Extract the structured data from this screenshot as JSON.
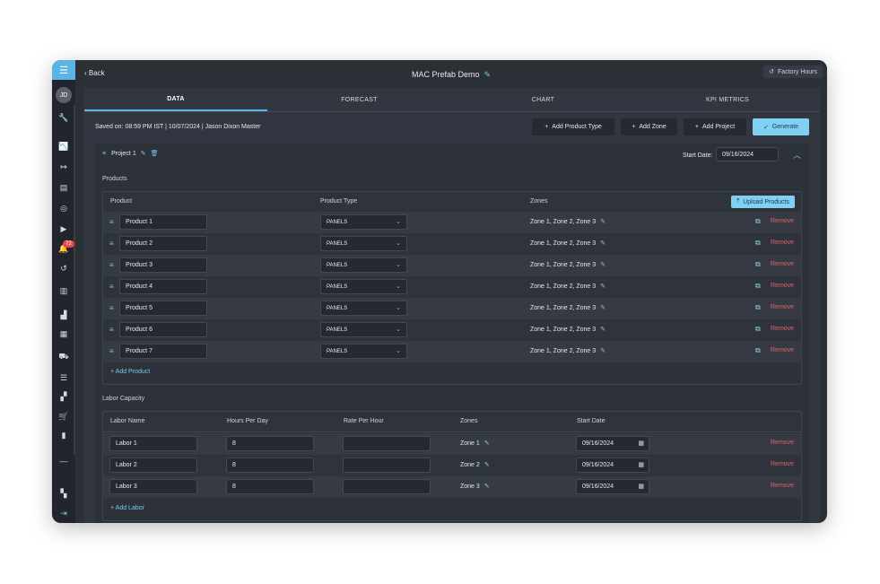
{
  "sidebar": {
    "avatar": "JD",
    "notification_count": "72",
    "icons": [
      "tools-icon",
      "chart-line-icon",
      "arrow-right-icon",
      "document-icon",
      "target-icon",
      "play-icon",
      "bell-icon",
      "history-icon",
      "file-icon",
      "bar-chart-icon",
      "calendar-icon",
      "truck-icon",
      "list-icon",
      "boxes-icon",
      "cart-icon",
      "stats-icon",
      "minus-icon",
      "grid-icon",
      "logout-icon"
    ]
  },
  "topbar": {
    "back": "Back",
    "title": "MAC Prefab Demo",
    "factory_hours": "Factory Hours"
  },
  "tabs": [
    "DATA",
    "FORECAST",
    "CHART",
    "KPI METRICS"
  ],
  "saved_text": "Saved on: 08:59 PM IST | 10/07/2024 | Jason Dixon Master",
  "actions": {
    "add_product_type": "Add Product Type",
    "add_zone": "Add Zone",
    "add_project": "Add Project",
    "generate": "Generate"
  },
  "project": {
    "name": "Project 1",
    "start_date_label": "Start Date:",
    "start_date": "09/16/2024"
  },
  "products": {
    "section_label": "Products",
    "headers": {
      "product": "Product",
      "type": "Product Type",
      "zones": "Zones"
    },
    "upload_label": "Upload Products",
    "remove_label": "Remove",
    "add_label": "Add Product",
    "rows": [
      {
        "name": "Product 1",
        "type": "PANELS",
        "zones": "Zone 1, Zone 2, Zone 3"
      },
      {
        "name": "Product 2",
        "type": "PANELS",
        "zones": "Zone 1, Zone 2, Zone 3"
      },
      {
        "name": "Product 3",
        "type": "PANELS",
        "zones": "Zone 1, Zone 2, Zone 3"
      },
      {
        "name": "Product 4",
        "type": "PANELS",
        "zones": "Zone 1, Zone 2, Zone 3"
      },
      {
        "name": "Product 5",
        "type": "PANELS",
        "zones": "Zone 1, Zone 2, Zone 3"
      },
      {
        "name": "Product 6",
        "type": "PANELS",
        "zones": "Zone 1, Zone 2, Zone 3"
      },
      {
        "name": "Product 7",
        "type": "PANELS",
        "zones": "Zone 1, Zone 2, Zone 3"
      }
    ]
  },
  "labor": {
    "section_label": "Labor Capacity",
    "headers": {
      "name": "Labor Name",
      "hours": "Hours Per Day",
      "rate": "Rate Per Hour",
      "zones": "Zones",
      "start": "Start Date"
    },
    "remove_label": "Remove",
    "add_label": "Add Labor",
    "rows": [
      {
        "name": "Labor 1",
        "hours": "8",
        "rate": "",
        "zone": "Zone 1",
        "start": "09/16/2024"
      },
      {
        "name": "Labor 2",
        "hours": "8",
        "rate": "",
        "zone": "Zone 2",
        "start": "09/16/2024"
      },
      {
        "name": "Labor 3",
        "hours": "8",
        "rate": "",
        "zone": "Zone 3",
        "start": "09/16/2024"
      }
    ]
  }
}
